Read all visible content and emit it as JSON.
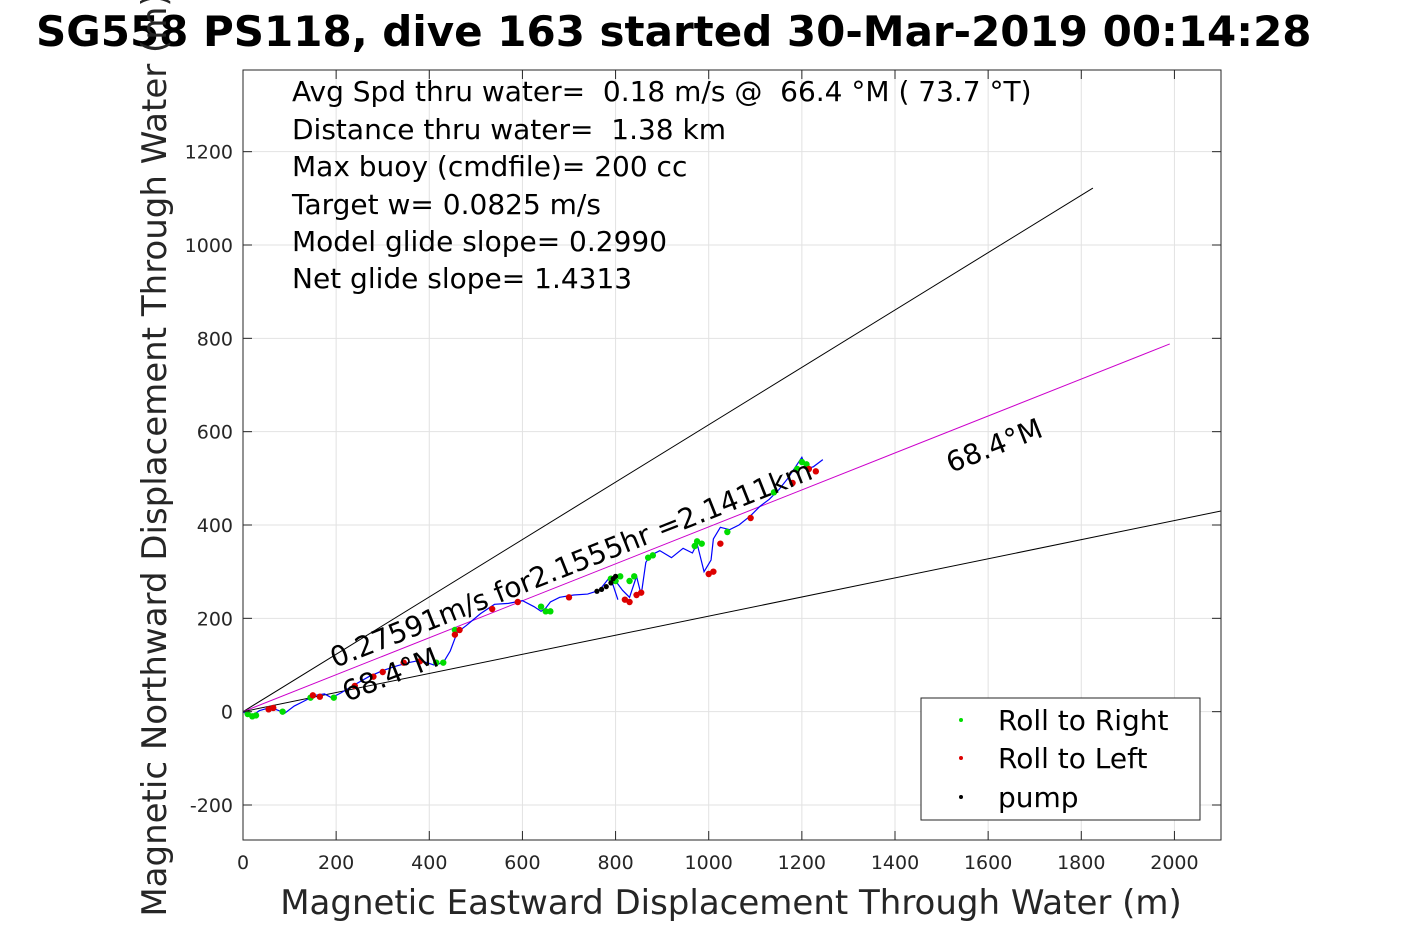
{
  "chart_data": {
    "type": "line",
    "title": "SG558 PS118, dive 163 started 30-Mar-2019 00:14:28",
    "xlabel": "Magnetic Eastward Displacement Through Water (m)",
    "ylabel": "Magnetic Northward Displacement Through Water (m)",
    "xlim": [
      0,
      2100
    ],
    "ylim": [
      -275,
      1375
    ],
    "xticks": [
      0,
      200,
      400,
      600,
      800,
      1000,
      1200,
      1400,
      1600,
      1800,
      2000
    ],
    "yticks": [
      -200,
      0,
      200,
      400,
      600,
      800,
      1000,
      1200
    ],
    "grid": true,
    "stats": [
      "Avg Spd thru water=  0.18 m/s @  66.4 °M ( 73.7 °T)",
      "Distance thru water=  1.38 km",
      "Max buoy (cmdfile)= 200 cc",
      "Target w= 0.0825 m/s",
      "Model glide slope= 0.2990",
      "Net glide slope= 1.4313"
    ],
    "speed_label": "0.27591m/s for2.1555hr =2.1411km",
    "heading_label_near": "68.4°M",
    "heading_label_far": "68.4°M",
    "reference_lines": [
      {
        "name": "upper",
        "x": [
          0,
          1825
        ],
        "y": [
          0,
          1122
        ],
        "color": "#000000"
      },
      {
        "name": "heading",
        "x": [
          0,
          1990
        ],
        "y": [
          0,
          788
        ],
        "color": "#cc00cc"
      },
      {
        "name": "lower",
        "x": [
          0,
          2100
        ],
        "y": [
          0,
          430
        ],
        "color": "#000000"
      }
    ],
    "track": {
      "color": "#0000ff",
      "x": [
        0,
        15,
        25,
        35,
        55,
        70,
        90,
        110,
        130,
        155,
        175,
        190,
        210,
        240,
        270,
        300,
        330,
        355,
        380,
        410,
        430,
        445,
        460,
        480,
        510,
        540,
        570,
        600,
        625,
        640,
        650,
        660,
        680,
        710,
        740,
        765,
        785,
        795,
        805,
        790,
        800,
        815,
        830,
        845,
        855,
        865,
        875,
        895,
        920,
        945,
        965,
        975,
        990,
        1005,
        1010,
        1025,
        1045,
        1065,
        1090,
        1110,
        1130,
        1150,
        1170,
        1190,
        1200,
        1210,
        1225,
        1245
      ],
      "y": [
        0,
        -10,
        -5,
        2,
        8,
        5,
        -3,
        12,
        22,
        35,
        38,
        30,
        40,
        58,
        75,
        88,
        98,
        105,
        110,
        100,
        105,
        130,
        170,
        185,
        210,
        230,
        232,
        238,
        225,
        215,
        222,
        235,
        245,
        250,
        252,
        260,
        285,
        270,
        240,
        285,
        280,
        260,
        245,
        290,
        250,
        320,
        335,
        345,
        330,
        350,
        340,
        360,
        300,
        325,
        370,
        395,
        390,
        400,
        420,
        440,
        455,
        475,
        500,
        530,
        545,
        520,
        525,
        540
      ]
    },
    "roll_right": {
      "color": "#00dd00",
      "x": [
        10,
        20,
        28,
        85,
        145,
        195,
        415,
        430,
        455,
        640,
        650,
        660,
        790,
        800,
        810,
        830,
        840,
        870,
        880,
        970,
        975,
        985,
        1040,
        1140,
        1190,
        1200,
        1210
      ],
      "y": [
        -5,
        -10,
        -8,
        0,
        30,
        30,
        105,
        105,
        175,
        225,
        215,
        215,
        285,
        280,
        290,
        280,
        290,
        330,
        335,
        355,
        365,
        360,
        385,
        470,
        520,
        535,
        530
      ]
    },
    "roll_left": {
      "color": "#dd0000",
      "x": [
        55,
        65,
        150,
        165,
        240,
        280,
        300,
        345,
        380,
        455,
        465,
        535,
        590,
        700,
        820,
        830,
        845,
        855,
        1000,
        1010,
        1025,
        1090,
        1180,
        1215,
        1230
      ],
      "y": [
        5,
        8,
        35,
        32,
        55,
        75,
        85,
        105,
        108,
        165,
        175,
        220,
        235,
        245,
        240,
        235,
        250,
        255,
        295,
        300,
        360,
        415,
        490,
        520,
        515
      ]
    },
    "pump": {
      "color": "#000000",
      "x": [
        760,
        770,
        780,
        790,
        795,
        800
      ],
      "y": [
        258,
        262,
        268,
        276,
        285,
        290
      ]
    },
    "legend": {
      "placement": "bottom-right",
      "entries": [
        {
          "label": "Roll to Right",
          "color": "#00dd00"
        },
        {
          "label": "Roll to Left",
          "color": "#dd0000"
        },
        {
          "label": "pump",
          "color": "#000000"
        }
      ]
    }
  }
}
